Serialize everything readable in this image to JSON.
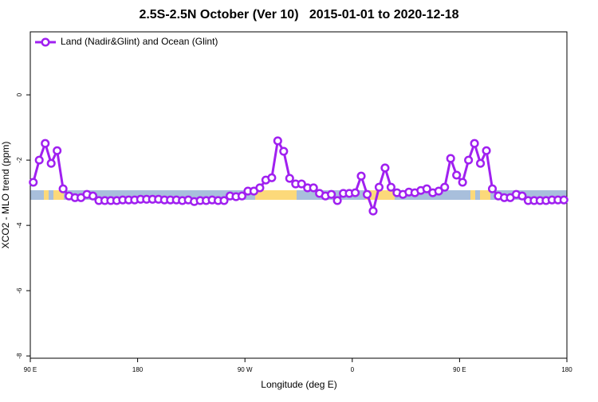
{
  "chart_data": {
    "type": "line",
    "title": "2.5S-2.5N October (Ver 10)   2015-01-01 to 2020-12-18",
    "x_label": "Longitude (deg E)",
    "y_label": "XCO2 - MLO trend (ppm)",
    "x": [
      92.5,
      97.5,
      102.5,
      107.5,
      112.5,
      117.5,
      122.5,
      127.5,
      132.5,
      137.5,
      142.5,
      147.5,
      152.5,
      157.5,
      162.5,
      167.5,
      172.5,
      177.5,
      182.5,
      187.5,
      192.5,
      197.5,
      202.5,
      207.5,
      212.5,
      217.5,
      222.5,
      227.5,
      232.5,
      237.5,
      242.5,
      247.5,
      252.5,
      257.5,
      262.5,
      267.5,
      272.5,
      277.5,
      282.5,
      287.5,
      292.5,
      297.5,
      302.5,
      307.5,
      312.5,
      317.5,
      322.5,
      327.5,
      332.5,
      337.5,
      342.5,
      347.5,
      352.5,
      357.5,
      362.5,
      367.5,
      372.5,
      377.5,
      382.5,
      387.5,
      392.5,
      397.5,
      402.5,
      407.5,
      412.5,
      417.5,
      422.5,
      427.5,
      432.5,
      437.5,
      442.5,
      447.5,
      452.5,
      457.5,
      462.5,
      467.5,
      472.5,
      477.5,
      482.5,
      487.5,
      492.5,
      497.5,
      502.5,
      507.5,
      512.5,
      517.5,
      522.5,
      527.5,
      532.5,
      537.5
    ],
    "series": [
      {
        "name": "Land (Nadir&Glint) and Ocean (Glint)",
        "color": "#a020f0",
        "values": [
          -2.68,
          -2.0,
          -1.49,
          -2.1,
          -1.71,
          -2.88,
          -3.1,
          -3.15,
          -3.15,
          -3.05,
          -3.1,
          -3.24,
          -3.24,
          -3.24,
          -3.24,
          -3.22,
          -3.22,
          -3.22,
          -3.2,
          -3.2,
          -3.2,
          -3.2,
          -3.22,
          -3.22,
          -3.22,
          -3.24,
          -3.22,
          -3.27,
          -3.24,
          -3.24,
          -3.22,
          -3.24,
          -3.24,
          -3.1,
          -3.12,
          -3.1,
          -2.95,
          -2.95,
          -2.85,
          -2.61,
          -2.54,
          -1.41,
          -1.73,
          -2.56,
          -2.73,
          -2.73,
          -2.85,
          -2.85,
          -3.02,
          -3.1,
          -3.05,
          -3.24,
          -3.02,
          -3.02,
          -3.0,
          -2.49,
          -3.05,
          -3.56,
          -2.83,
          -2.24,
          -2.83,
          -3.0,
          -3.05,
          -2.98,
          -3.0,
          -2.93,
          -2.88,
          -3.0,
          -2.95,
          -2.83,
          -1.95,
          -2.46,
          -2.68,
          -2.0,
          -1.49,
          -2.1,
          -1.71,
          -2.88,
          -3.1,
          -3.15,
          -3.15,
          -3.05,
          -3.1,
          -3.24,
          -3.24,
          -3.24,
          -3.24,
          -3.22,
          -3.22,
          -3.22
        ]
      }
    ],
    "xlim": [
      90,
      540
    ],
    "xticks": [
      {
        "value": 90,
        "label": "90 E"
      },
      180,
      {
        "value": 270,
        "label": "90 W"
      },
      {
        "value": 360,
        "label": "0"
      },
      {
        "value": 450,
        "label": "90 E"
      },
      {
        "value": 540,
        "label": "180"
      }
    ],
    "ylim": [
      -8.07,
      1.93
    ],
    "yticks": [
      0,
      -2,
      -4,
      -6,
      -8
    ],
    "legend": "top-left"
  }
}
